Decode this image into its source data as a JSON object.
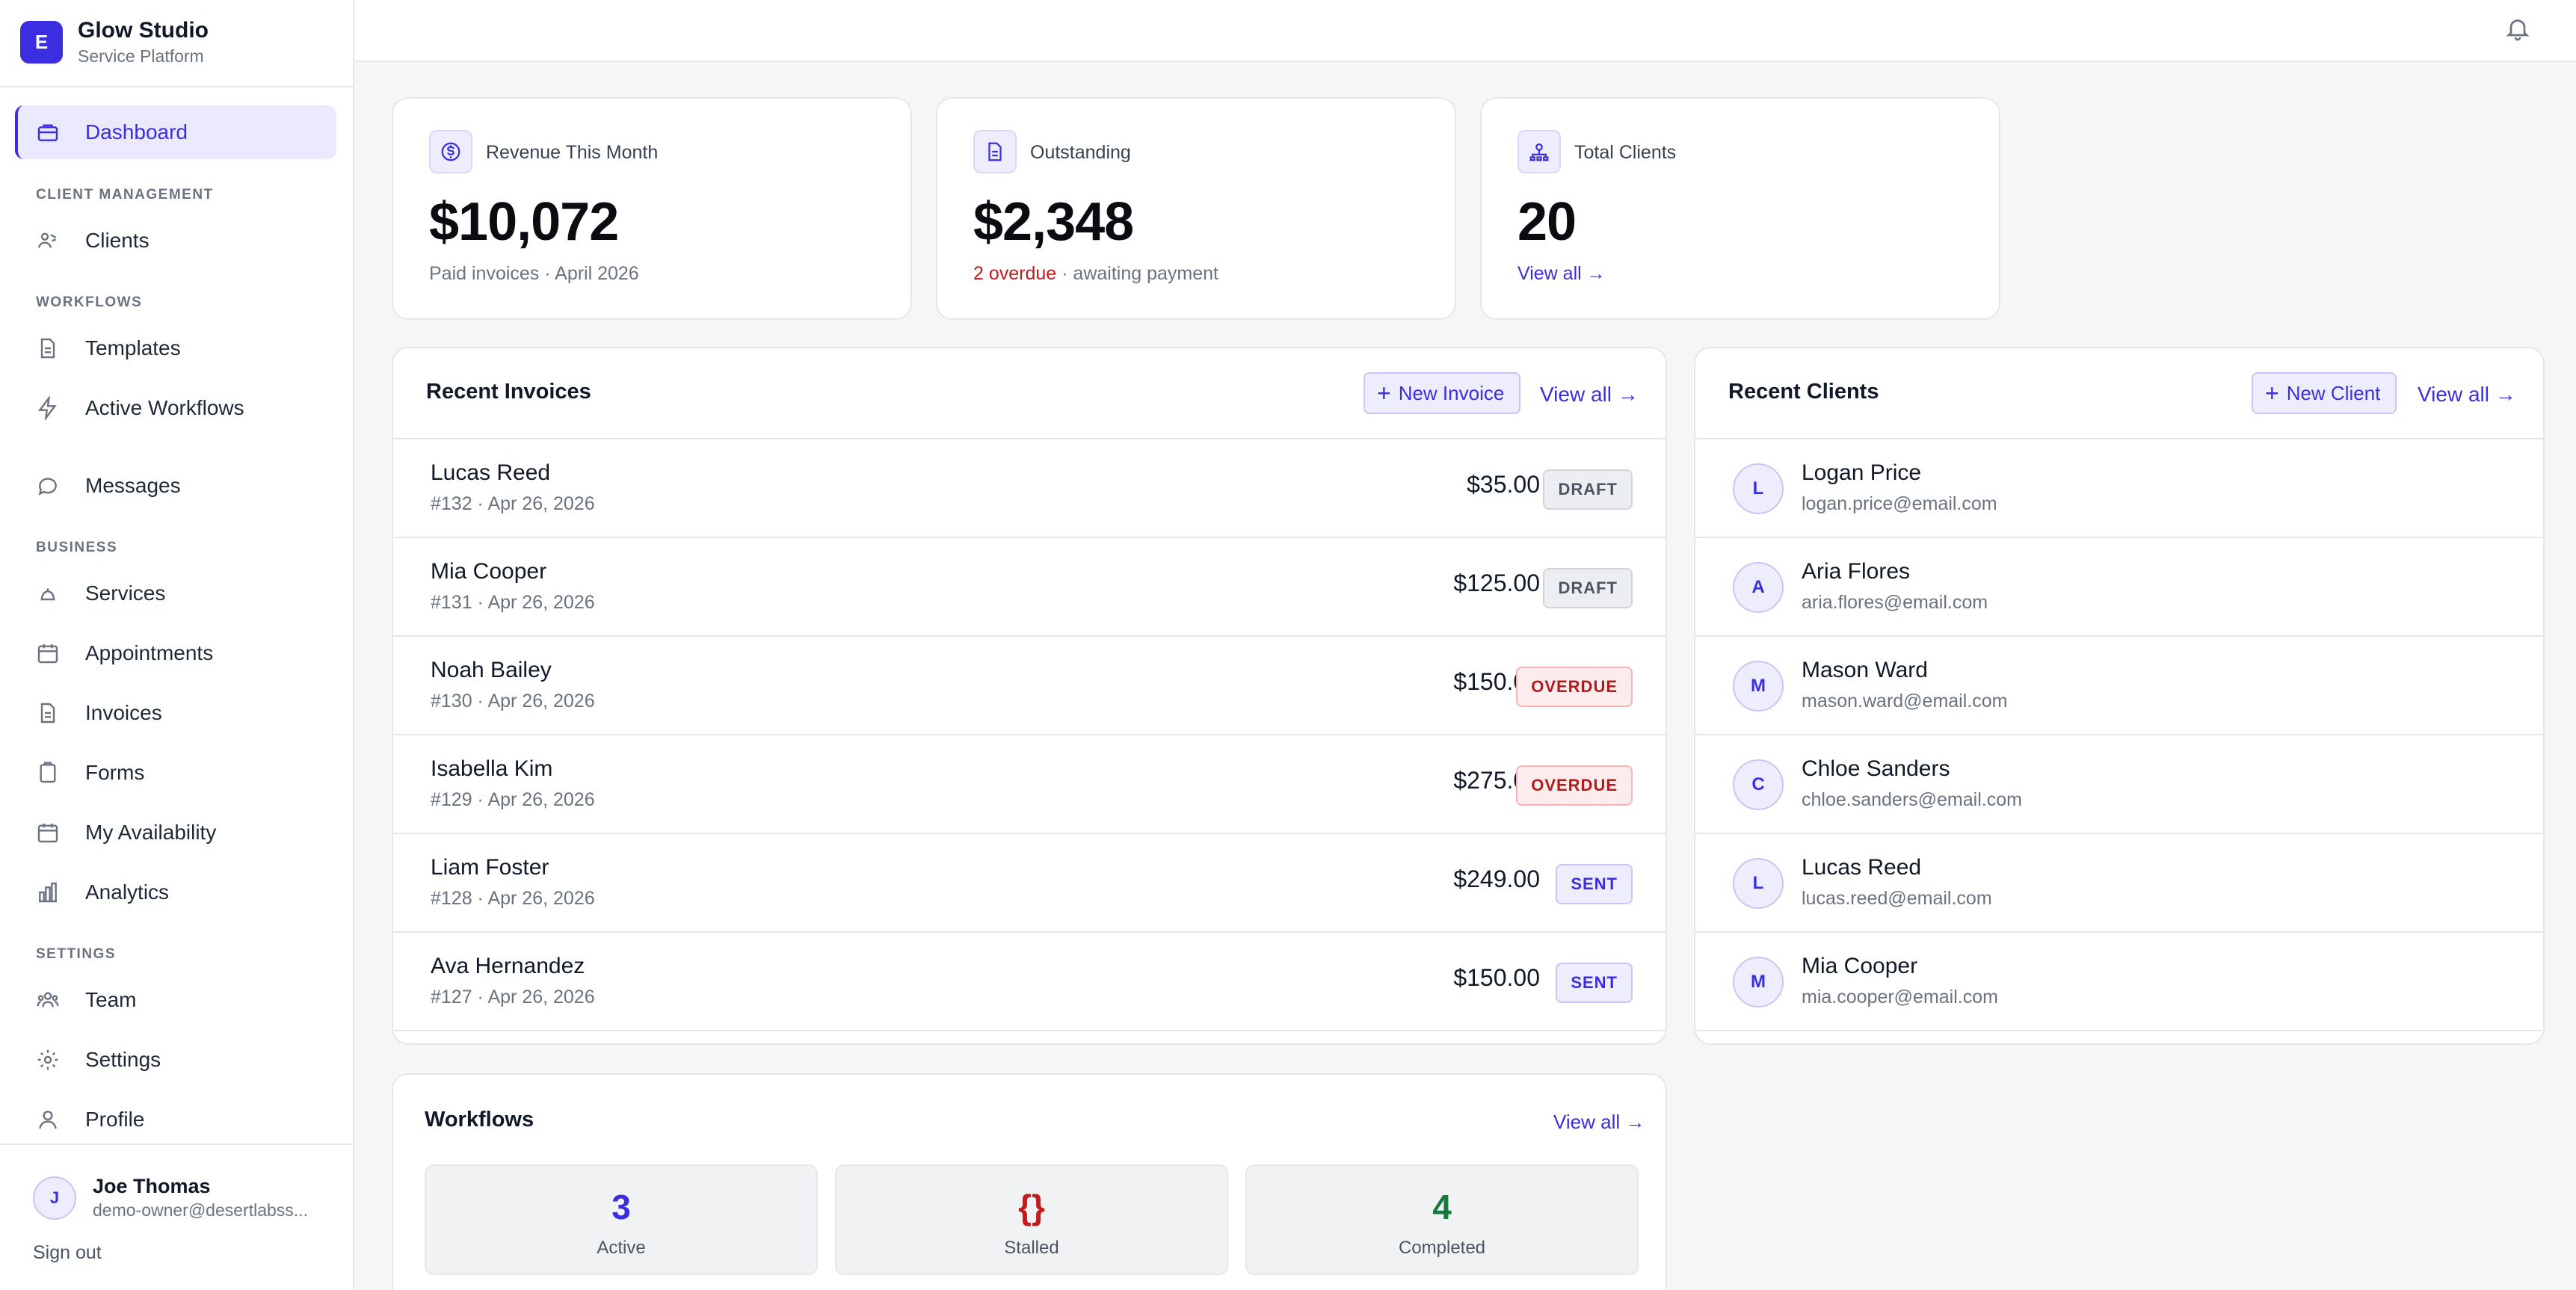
{
  "brand": {
    "logo_letter": "E",
    "name": "Glow Studio",
    "subtitle": "Service Platform"
  },
  "sidebar": {
    "dashboard": "Dashboard",
    "section_client": "CLIENT MANAGEMENT",
    "clients": "Clients",
    "section_workflows": "WORKFLOWS",
    "templates": "Templates",
    "active_workflows": "Active Workflows",
    "messages": "Messages",
    "section_business": "BUSINESS",
    "services": "Services",
    "appointments": "Appointments",
    "invoices": "Invoices",
    "forms": "Forms",
    "availability": "My Availability",
    "analytics": "Analytics",
    "section_settings": "SETTINGS",
    "team": "Team",
    "settings": "Settings",
    "profile": "Profile"
  },
  "user": {
    "initial": "J",
    "name": "Joe Thomas",
    "email": "demo-owner@desertlabss...",
    "sign_out": "Sign out"
  },
  "stats": {
    "revenue": {
      "label": "Revenue This Month",
      "value": "$10,072",
      "foot": "Paid invoices · April 2026"
    },
    "outstanding": {
      "label": "Outstanding",
      "value": "$2,348",
      "overdue": "2 overdue",
      "foot_rest": " · awaiting payment"
    },
    "clients": {
      "label": "Total Clients",
      "value": "20",
      "link": "View all →"
    }
  },
  "invoices_panel": {
    "title": "Recent Invoices",
    "new_label": "New Invoice",
    "view_all": "View all →",
    "rows": [
      {
        "name": "Lucas Reed",
        "meta": "#132 · Apr 26, 2026",
        "amount": "$35.00",
        "status": "DRAFT"
      },
      {
        "name": "Mia Cooper",
        "meta": "#131 · Apr 26, 2026",
        "amount": "$125.00",
        "status": "DRAFT"
      },
      {
        "name": "Noah Bailey",
        "meta": "#130 · Apr 26, 2026",
        "amount": "$150.00",
        "status": "OVERDUE"
      },
      {
        "name": "Isabella Kim",
        "meta": "#129 · Apr 26, 2026",
        "amount": "$275.00",
        "status": "OVERDUE"
      },
      {
        "name": "Liam Foster",
        "meta": "#128 · Apr 26, 2026",
        "amount": "$249.00",
        "status": "SENT"
      },
      {
        "name": "Ava Hernandez",
        "meta": "#127 · Apr 26, 2026",
        "amount": "$150.00",
        "status": "SENT"
      }
    ]
  },
  "clients_panel": {
    "title": "Recent Clients",
    "new_label": "New Client",
    "view_all": "View all →",
    "rows": [
      {
        "initial": "L",
        "name": "Logan Price",
        "email": "logan.price@email.com"
      },
      {
        "initial": "A",
        "name": "Aria Flores",
        "email": "aria.flores@email.com"
      },
      {
        "initial": "M",
        "name": "Mason Ward",
        "email": "mason.ward@email.com"
      },
      {
        "initial": "C",
        "name": "Chloe Sanders",
        "email": "chloe.sanders@email.com"
      },
      {
        "initial": "L",
        "name": "Lucas Reed",
        "email": "lucas.reed@email.com"
      },
      {
        "initial": "M",
        "name": "Mia Cooper",
        "email": "mia.cooper@email.com"
      }
    ]
  },
  "workflows_panel": {
    "title": "Workflows",
    "view_all": "View all →",
    "active": {
      "value": "3",
      "label": "Active",
      "color": "#3b2ee0"
    },
    "stalled": {
      "value": "{}",
      "label": "Stalled",
      "color": "#c21d1d"
    },
    "completed": {
      "value": "4",
      "label": "Completed",
      "color": "#167a3e"
    }
  },
  "colors": {
    "accent": "#3b2ee0",
    "danger": "#c21d1d",
    "success": "#167a3e"
  }
}
